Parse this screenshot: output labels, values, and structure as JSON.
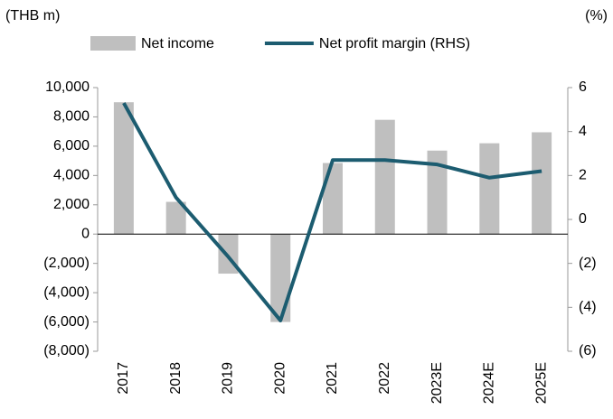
{
  "chart_data": {
    "type": "bar_line",
    "y_axis_label": "(THB m)",
    "y2_axis_label": "(%)",
    "categories": [
      "2017",
      "2018",
      "2019",
      "2020",
      "2021",
      "2022",
      "2023E",
      "2024E",
      "2025E"
    ],
    "series": [
      {
        "name": "Net income",
        "type": "bar",
        "color": "#bfbfbf",
        "values": [
          9000,
          2200,
          -2700,
          -6000,
          4850,
          7800,
          5700,
          6200,
          6950
        ]
      },
      {
        "name": "Net profit margin (RHS)",
        "type": "line",
        "axis": "y2",
        "color": "#1c5c70",
        "values": [
          5.3,
          1.0,
          -1.7,
          -4.6,
          2.7,
          2.7,
          2.5,
          1.9,
          2.2
        ]
      }
    ],
    "ylim": [
      -8000,
      10000
    ],
    "yticks": [
      {
        "value": -8000,
        "label": "(8,000)"
      },
      {
        "value": -6000,
        "label": "(6,000)"
      },
      {
        "value": -4000,
        "label": "(4,000)"
      },
      {
        "value": -2000,
        "label": "(2,000)"
      },
      0,
      {
        "value": 2000,
        "label": "2,000"
      },
      {
        "value": 4000,
        "label": "4,000"
      },
      {
        "value": 6000,
        "label": "6,000"
      },
      {
        "value": 8000,
        "label": "8,000"
      },
      {
        "value": 10000,
        "label": "10,000"
      }
    ],
    "y2lim": [
      -6,
      6
    ],
    "y2ticks": [
      {
        "value": -6,
        "label": "(6)"
      },
      {
        "value": -4,
        "label": "(4)"
      },
      {
        "value": -2,
        "label": "(2)"
      },
      0,
      2,
      4,
      6
    ]
  }
}
